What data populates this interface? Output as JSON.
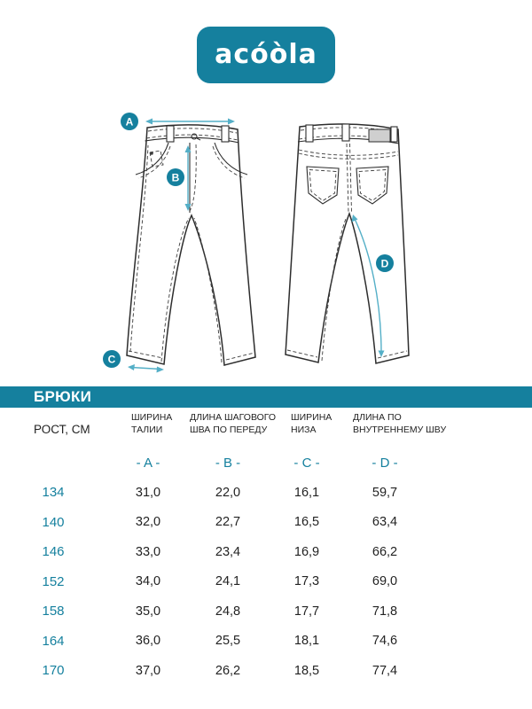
{
  "brand": {
    "logo_text": "acóòla"
  },
  "diagram": {
    "markers": {
      "a": "A",
      "b": "B",
      "c": "C",
      "d": "D"
    }
  },
  "table": {
    "title": "БРЮКИ",
    "row_header": "РОСТ, СМ",
    "columns": [
      {
        "line1": "ШИРИНА",
        "line2": "ТАЛИИ",
        "letter": "- A -"
      },
      {
        "line1": "ДЛИНА ШАГОВОГО",
        "line2": "ШВА ПО ПЕРЕДУ",
        "letter": "- B -"
      },
      {
        "line1": "ШИРИНА",
        "line2": "НИЗА",
        "letter": "- C -"
      },
      {
        "line1": "ДЛИНА ПО",
        "line2": "ВНУТРЕННЕМУ ШВУ",
        "letter": "- D -"
      }
    ],
    "rows": [
      {
        "height": "134",
        "values": [
          "31,0",
          "22,0",
          "16,1",
          "59,7"
        ]
      },
      {
        "height": "140",
        "values": [
          "32,0",
          "22,7",
          "16,5",
          "63,4"
        ]
      },
      {
        "height": "146",
        "values": [
          "33,0",
          "23,4",
          "16,9",
          "66,2"
        ]
      },
      {
        "height": "152",
        "values": [
          "34,0",
          "24,1",
          "17,3",
          "69,0"
        ]
      },
      {
        "height": "158",
        "values": [
          "35,0",
          "24,8",
          "17,7",
          "71,8"
        ]
      },
      {
        "height": "164",
        "values": [
          "36,0",
          "25,5",
          "18,1",
          "74,6"
        ]
      },
      {
        "height": "170",
        "values": [
          "37,0",
          "26,2",
          "18,5",
          "77,4"
        ]
      }
    ]
  },
  "colors": {
    "teal": "#15809E",
    "teal_light": "#54AFC7",
    "text": "#232323"
  }
}
